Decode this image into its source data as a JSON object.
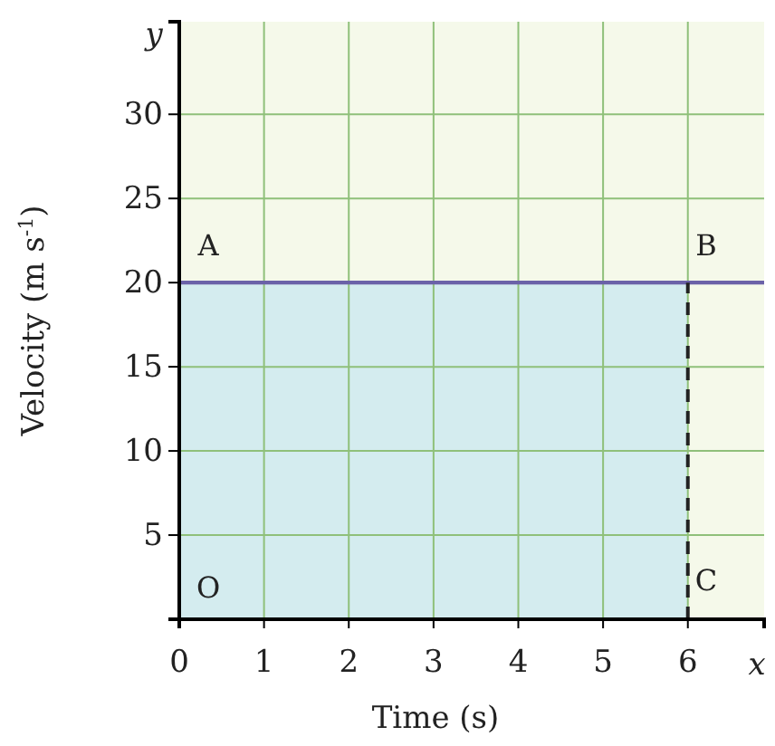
{
  "chart_data": {
    "type": "line",
    "xlabel": "Time (s)",
    "ylabel": "Velocity (m s$^{-1}$)",
    "xlim": [
      0,
      6.9
    ],
    "ylim": [
      0,
      35.5
    ],
    "xticks": [
      0,
      1,
      2,
      3,
      4,
      5,
      6
    ],
    "yticks": [
      5,
      10,
      15,
      20,
      25,
      30
    ],
    "grid": true,
    "series": [
      {
        "type": "area",
        "color": "#d4ecef",
        "x": [
          0,
          6
        ],
        "values": [
          20,
          20
        ]
      },
      {
        "color": "#6b62a8",
        "x": [
          0,
          6.9
        ],
        "values": [
          20,
          20
        ],
        "line_style": "solid"
      },
      {
        "color": "#222222",
        "x": [
          6,
          6
        ],
        "values": [
          0,
          20
        ],
        "line_style": "dashed"
      }
    ],
    "annotations": [
      "A",
      "B",
      "C",
      "O",
      "x",
      "y"
    ]
  }
}
